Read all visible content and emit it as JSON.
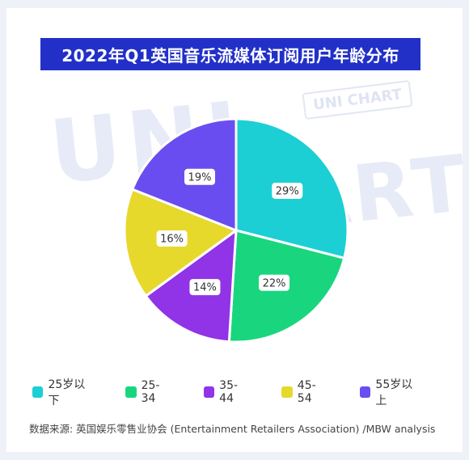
{
  "title": "2022年Q1英国音乐流媒体订阅用户年龄分布",
  "watermark": {
    "line1": "UNI",
    "line2": "CHART",
    "stamp": "UNI CHART"
  },
  "source": "数据来源: 英国娱乐零售业协会 (Entertainment Retailers Association) /MBW analysis",
  "chart_data": {
    "type": "pie",
    "title": "2022年Q1英国音乐流媒体订阅用户年龄分布",
    "legend_position": "bottom",
    "slices": [
      {
        "label": "25岁以下",
        "value": 29,
        "display": "29%",
        "color": "#1ccfd4"
      },
      {
        "label": "25-34",
        "value": 22,
        "display": "22%",
        "color": "#19d67e"
      },
      {
        "label": "35-44",
        "value": 14,
        "display": "14%",
        "color": "#9133e6"
      },
      {
        "label": "45-54",
        "value": 16,
        "display": "16%",
        "color": "#e7d82c"
      },
      {
        "label": "55岁以上",
        "value": 19,
        "display": "19%",
        "color": "#6a4df0"
      }
    ]
  }
}
